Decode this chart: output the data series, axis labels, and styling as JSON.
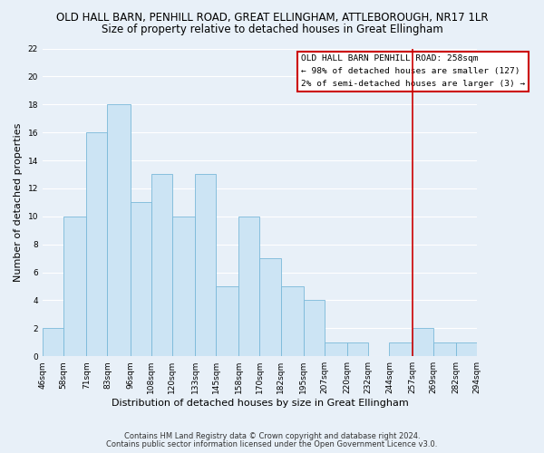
{
  "title": "OLD HALL BARN, PENHILL ROAD, GREAT ELLINGHAM, ATTLEBOROUGH, NR17 1LR",
  "subtitle": "Size of property relative to detached houses in Great Ellingham",
  "xlabel": "Distribution of detached houses by size in Great Ellingham",
  "ylabel": "Number of detached properties",
  "bin_edges": [
    46,
    58,
    71,
    83,
    96,
    108,
    120,
    133,
    145,
    158,
    170,
    182,
    195,
    207,
    220,
    232,
    244,
    257,
    269,
    282,
    294
  ],
  "counts": [
    2,
    10,
    16,
    18,
    11,
    13,
    10,
    13,
    5,
    10,
    7,
    5,
    4,
    1,
    1,
    0,
    1,
    2,
    1,
    1
  ],
  "bar_color": "#cce4f4",
  "bar_edge_color": "#7ab8d9",
  "vline_x": 257,
  "vline_color": "#cc0000",
  "ylim": [
    0,
    22
  ],
  "yticks": [
    0,
    2,
    4,
    6,
    8,
    10,
    12,
    14,
    16,
    18,
    20,
    22
  ],
  "tick_labels": [
    "46sqm",
    "58sqm",
    "71sqm",
    "83sqm",
    "96sqm",
    "108sqm",
    "120sqm",
    "133sqm",
    "145sqm",
    "158sqm",
    "170sqm",
    "182sqm",
    "195sqm",
    "207sqm",
    "220sqm",
    "232sqm",
    "244sqm",
    "257sqm",
    "269sqm",
    "282sqm",
    "294sqm"
  ],
  "legend_title": "OLD HALL BARN PENHILL ROAD: 258sqm",
  "legend_line1": "← 98% of detached houses are smaller (127)",
  "legend_line2": "2% of semi-detached houses are larger (3) →",
  "legend_box_color": "#ffffff",
  "legend_border_color": "#cc0000",
  "footnote1": "Contains HM Land Registry data © Crown copyright and database right 2024.",
  "footnote2": "Contains public sector information licensed under the Open Government Licence v3.0.",
  "background_color": "#e8f0f8",
  "grid_color": "#ffffff",
  "title_fontsize": 8.5,
  "subtitle_fontsize": 8.5,
  "axis_label_fontsize": 8,
  "tick_fontsize": 6.5,
  "footnote_fontsize": 6
}
